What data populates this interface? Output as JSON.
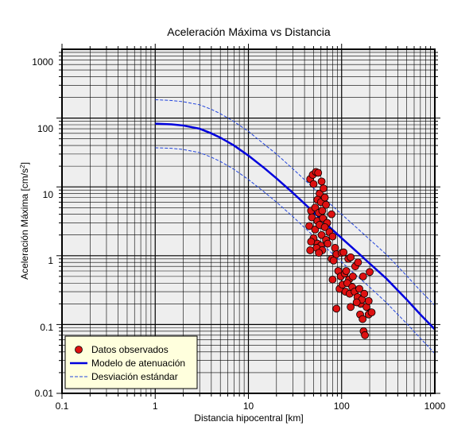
{
  "chart_data": {
    "type": "scatter",
    "title": "Aceleración Máxima vs Distancia",
    "xlabel": "Distancia hipocentral [km]",
    "ylabel_main": "Aceleración Máxima [cm/s",
    "ylabel_sup": "2",
    "ylabel_end": "]",
    "x_scale": "log",
    "y_scale": "log",
    "xlim": [
      0.1,
      1000
    ],
    "ylim": [
      0.01,
      1000
    ],
    "x_ticks": [
      "0.1",
      "1",
      "10",
      "100",
      "1000"
    ],
    "y_ticks": [
      "0.01",
      "0.1",
      "1",
      "10",
      "100",
      "1000"
    ],
    "grid": true,
    "legend_position": "bottom-left",
    "colors": {
      "plot_bg": "#eeeeee",
      "grid": "#000000",
      "points": "#dd1111",
      "model": "#0000dd",
      "deviation": "#2244dd",
      "legend_bg": "#ffffdd"
    },
    "series": [
      {
        "name": "Datos observados",
        "kind": "points",
        "points": [
          [
            46,
            13
          ],
          [
            49,
            15
          ],
          [
            53,
            16.5
          ],
          [
            56,
            16
          ],
          [
            61,
            12
          ],
          [
            50,
            11
          ],
          [
            58,
            8
          ],
          [
            64,
            9.5
          ],
          [
            55,
            6.5
          ],
          [
            60,
            6
          ],
          [
            66,
            7
          ],
          [
            68,
            5.5
          ],
          [
            47,
            4.5
          ],
          [
            52,
            5
          ],
          [
            57,
            4.2
          ],
          [
            62,
            4.5
          ],
          [
            48,
            3.6
          ],
          [
            55,
            3.2
          ],
          [
            63,
            3.5
          ],
          [
            70,
            3
          ],
          [
            78,
            4
          ],
          [
            45,
            2.7
          ],
          [
            52,
            2.4
          ],
          [
            58,
            2.8
          ],
          [
            61,
            2
          ],
          [
            66,
            2.6
          ],
          [
            74,
            2.2
          ],
          [
            50,
            1.8
          ],
          [
            55,
            1.5
          ],
          [
            60,
            1.4
          ],
          [
            68,
            1.7
          ],
          [
            80,
            1.9
          ],
          [
            47,
            1.6
          ],
          [
            54,
            1.3
          ],
          [
            62,
            1.2
          ],
          [
            46,
            1.2
          ],
          [
            57,
            1.1
          ],
          [
            71,
            1.5
          ],
          [
            85,
            1.3
          ],
          [
            78,
            0.9
          ],
          [
            82,
            0.85
          ],
          [
            88,
            1.05
          ],
          [
            100,
            1.1
          ],
          [
            105,
            1.12
          ],
          [
            118,
            0.9
          ],
          [
            125,
            0.95
          ],
          [
            140,
            0.7
          ],
          [
            150,
            0.8
          ],
          [
            92,
            0.6
          ],
          [
            98,
            0.5
          ],
          [
            108,
            0.55
          ],
          [
            112,
            0.6
          ],
          [
            120,
            0.45
          ],
          [
            132,
            0.5
          ],
          [
            170,
            0.5
          ],
          [
            200,
            0.58
          ],
          [
            80,
            0.45
          ],
          [
            95,
            0.33
          ],
          [
            102,
            0.38
          ],
          [
            110,
            0.3
          ],
          [
            115,
            0.4
          ],
          [
            122,
            0.28
          ],
          [
            130,
            0.35
          ],
          [
            138,
            0.3
          ],
          [
            148,
            0.25
          ],
          [
            155,
            0.33
          ],
          [
            160,
            0.2
          ],
          [
            165,
            0.23
          ],
          [
            175,
            0.28
          ],
          [
            185,
            0.18
          ],
          [
            195,
            0.22
          ],
          [
            205,
            0.15
          ],
          [
            88,
            0.17
          ],
          [
            158,
            0.14
          ],
          [
            168,
            0.12
          ],
          [
            172,
            0.08
          ],
          [
            178,
            0.07
          ],
          [
            195,
            0.14
          ],
          [
            210,
            0.15
          ],
          [
            125,
            0.18
          ],
          [
            145,
            0.21
          ]
        ]
      },
      {
        "name": "Modelo de atenuación",
        "kind": "line",
        "points": [
          [
            1,
            83
          ],
          [
            1.5,
            81
          ],
          [
            2,
            78
          ],
          [
            3,
            70
          ],
          [
            4,
            60
          ],
          [
            5,
            52
          ],
          [
            7,
            40
          ],
          [
            10,
            28.5
          ],
          [
            15,
            18.5
          ],
          [
            20,
            13.3
          ],
          [
            30,
            8.2
          ],
          [
            50,
            4.3
          ],
          [
            70,
            2.8
          ],
          [
            100,
            1.8
          ],
          [
            150,
            1.1
          ],
          [
            200,
            0.77
          ],
          [
            300,
            0.47
          ],
          [
            500,
            0.23
          ],
          [
            700,
            0.14
          ],
          [
            1000,
            0.085
          ]
        ]
      },
      {
        "name": "Desviación estándar",
        "kind": "dashed",
        "upper": [
          [
            1,
            185
          ],
          [
            1.5,
            180
          ],
          [
            2,
            173
          ],
          [
            3,
            156
          ],
          [
            4,
            134
          ],
          [
            5,
            116
          ],
          [
            7,
            89
          ],
          [
            10,
            64
          ],
          [
            15,
            41
          ],
          [
            20,
            30
          ],
          [
            30,
            18.3
          ],
          [
            50,
            9.6
          ],
          [
            70,
            6.2
          ],
          [
            100,
            4
          ],
          [
            150,
            2.45
          ],
          [
            200,
            1.72
          ],
          [
            300,
            1.05
          ],
          [
            500,
            0.51
          ],
          [
            700,
            0.31
          ],
          [
            1000,
            0.19
          ]
        ],
        "lower": [
          [
            1,
            37
          ],
          [
            1.5,
            36.4
          ],
          [
            2,
            35
          ],
          [
            3,
            31.5
          ],
          [
            4,
            27
          ],
          [
            5,
            23.4
          ],
          [
            7,
            18
          ],
          [
            10,
            12.8
          ],
          [
            15,
            8.3
          ],
          [
            20,
            6
          ],
          [
            30,
            3.7
          ],
          [
            50,
            1.93
          ],
          [
            70,
            1.26
          ],
          [
            100,
            0.81
          ],
          [
            150,
            0.49
          ],
          [
            200,
            0.35
          ],
          [
            300,
            0.21
          ],
          [
            500,
            0.103
          ],
          [
            700,
            0.063
          ],
          [
            1000,
            0.038
          ]
        ]
      }
    ]
  }
}
